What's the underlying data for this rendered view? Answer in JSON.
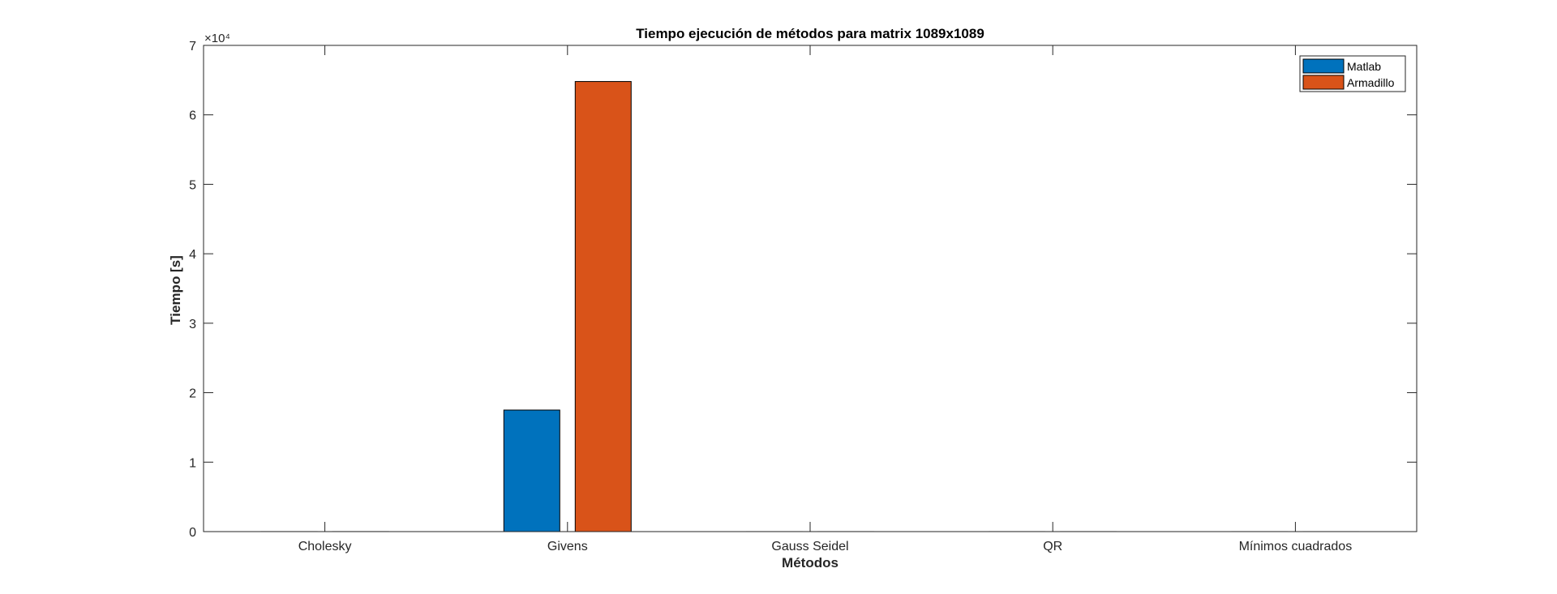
{
  "chart_data": {
    "type": "bar",
    "title": "Tiempo ejecución de métodos para matrix 1089x1089",
    "xlabel": "Métodos",
    "ylabel": "Tiempo [s]",
    "categories": [
      "Cholesky",
      "Givens",
      "Gauss Seidel",
      "QR",
      "Mínimos cuadrados"
    ],
    "series": [
      {
        "name": "Matlab",
        "color": "#0072BD",
        "values": [
          5,
          17500,
          3,
          4,
          3
        ]
      },
      {
        "name": "Armadillo",
        "color": "#D95319",
        "values": [
          6,
          64800,
          4,
          5,
          3
        ]
      }
    ],
    "ylim": [
      0,
      70000
    ],
    "yticks": [
      0,
      10000,
      20000,
      30000,
      40000,
      50000,
      60000,
      70000
    ],
    "ytick_labels": [
      "0",
      "1",
      "2",
      "3",
      "4",
      "5",
      "6",
      "7"
    ],
    "y_exponent_label": "×10⁴",
    "legend_position": "top-right",
    "grid": false
  }
}
